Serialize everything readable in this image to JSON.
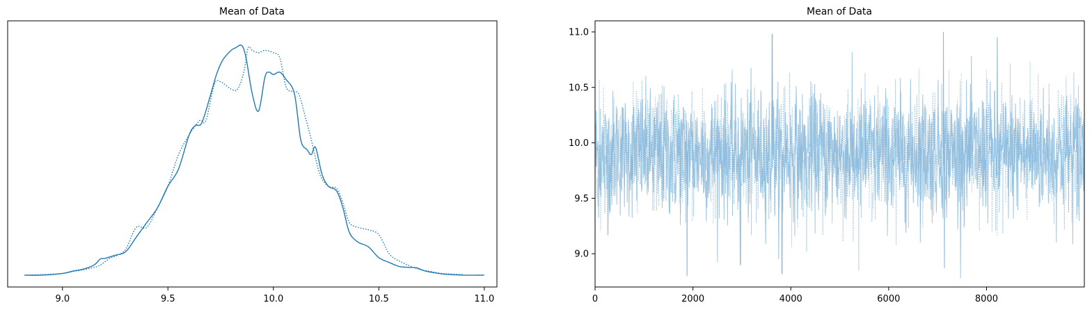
{
  "chart_data": [
    {
      "type": "line",
      "title": "Mean of Data",
      "xlabel": "",
      "ylabel": "",
      "xlim": [
        8.74,
        11.06
      ],
      "ylim": [
        0,
        1.0
      ],
      "xticks": [
        9.0,
        9.5,
        10.0,
        10.5,
        11.0
      ],
      "xtick_labels": [
        "9.0",
        "9.5",
        "10.0",
        "10.5",
        "11.0"
      ],
      "yticks_shown": false,
      "grid": false,
      "color": "#1f77b4",
      "series": [
        {
          "style": "solid",
          "x": [
            8.82,
            8.9,
            9.0,
            9.05,
            9.1,
            9.15,
            9.18,
            9.2,
            9.25,
            9.3,
            9.35,
            9.4,
            9.45,
            9.5,
            9.55,
            9.6,
            9.63,
            9.66,
            9.7,
            9.73,
            9.76,
            9.8,
            9.82,
            9.85,
            9.87,
            9.9,
            9.93,
            9.96,
            9.98,
            10.0,
            10.03,
            10.06,
            10.1,
            10.13,
            10.16,
            10.18,
            10.2,
            10.23,
            10.26,
            10.3,
            10.33,
            10.36,
            10.4,
            10.45,
            10.5,
            10.55,
            10.6,
            10.65,
            10.68,
            10.72,
            10.8,
            10.9,
            11.0
          ],
          "y": [
            0.003,
            0.003,
            0.01,
            0.02,
            0.028,
            0.045,
            0.07,
            0.072,
            0.085,
            0.1,
            0.16,
            0.22,
            0.28,
            0.37,
            0.44,
            0.58,
            0.62,
            0.63,
            0.74,
            0.83,
            0.89,
            0.93,
            0.94,
            0.95,
            0.9,
            0.75,
            0.68,
            0.82,
            0.84,
            0.83,
            0.84,
            0.81,
            0.75,
            0.56,
            0.52,
            0.5,
            0.53,
            0.42,
            0.37,
            0.35,
            0.28,
            0.18,
            0.14,
            0.12,
            0.075,
            0.055,
            0.038,
            0.035,
            0.033,
            0.02,
            0.008,
            0.003,
            0.003
          ]
        },
        {
          "style": "dotted",
          "x": [
            8.82,
            8.9,
            9.0,
            9.05,
            9.1,
            9.15,
            9.18,
            9.22,
            9.26,
            9.3,
            9.35,
            9.4,
            9.45,
            9.5,
            9.55,
            9.6,
            9.65,
            9.68,
            9.72,
            9.75,
            9.8,
            9.83,
            9.86,
            9.88,
            9.9,
            9.93,
            9.96,
            10.0,
            10.03,
            10.06,
            10.09,
            10.12,
            10.15,
            10.18,
            10.22,
            10.26,
            10.3,
            10.33,
            10.36,
            10.4,
            10.45,
            10.5,
            10.55,
            10.6,
            10.65,
            10.7,
            10.75,
            10.8,
            10.9
          ],
          "y": [
            0.003,
            0.005,
            0.01,
            0.018,
            0.025,
            0.035,
            0.045,
            0.07,
            0.085,
            0.11,
            0.2,
            0.2,
            0.28,
            0.37,
            0.5,
            0.58,
            0.64,
            0.64,
            0.79,
            0.8,
            0.77,
            0.77,
            0.84,
            0.94,
            0.93,
            0.92,
            0.93,
            0.92,
            0.9,
            0.78,
            0.76,
            0.75,
            0.66,
            0.56,
            0.42,
            0.37,
            0.36,
            0.3,
            0.22,
            0.2,
            0.19,
            0.17,
            0.09,
            0.06,
            0.04,
            0.025,
            0.018,
            0.01,
            0.005
          ]
        }
      ]
    },
    {
      "type": "line",
      "title": "Mean of Data",
      "xlabel": "",
      "ylabel": "",
      "xlim": [
        0,
        9999
      ],
      "ylim": [
        8.7,
        11.1
      ],
      "xticks": [
        0,
        2000,
        4000,
        6000,
        8000
      ],
      "xtick_labels": [
        "0",
        "2000",
        "4000",
        "6000",
        "8000"
      ],
      "yticks": [
        9.0,
        9.5,
        10.0,
        10.5,
        11.0
      ],
      "ytick_labels": [
        "9.0",
        "9.5",
        "10.0",
        "10.5",
        "11.0"
      ],
      "grid": false,
      "color": "#7fb3d8",
      "n_draws": 10000,
      "center": 9.9,
      "spread": 0.28,
      "series": [
        {
          "style": "solid"
        },
        {
          "style": "dotted"
        }
      ],
      "extremes": [
        {
          "x": 3620,
          "y": 10.98
        },
        {
          "x": 7120,
          "y": 11.0
        },
        {
          "x": 8220,
          "y": 10.95
        },
        {
          "x": 1880,
          "y": 8.8
        },
        {
          "x": 3820,
          "y": 8.82
        },
        {
          "x": 7140,
          "y": 8.87
        },
        {
          "x": 2970,
          "y": 8.9
        }
      ]
    }
  ]
}
